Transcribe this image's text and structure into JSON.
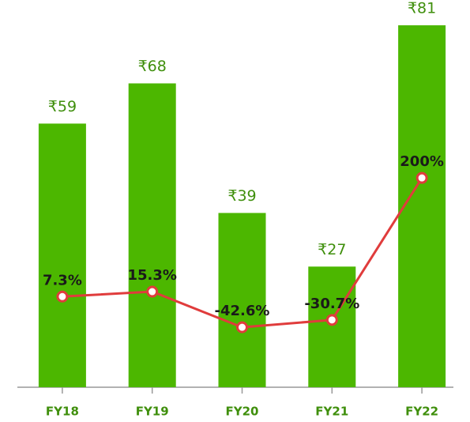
{
  "chart_data": {
    "type": "bar",
    "categories": [
      "FY18",
      "FY19",
      "FY20",
      "FY21",
      "FY22"
    ],
    "series": [
      {
        "type": "bar",
        "color": "#4cb700",
        "values": [
          59,
          68,
          39,
          27,
          81
        ],
        "value_labels": [
          "₹59",
          "₹68",
          "₹39",
          "₹27",
          "₹81"
        ]
      },
      {
        "type": "line",
        "axis": "y2",
        "color": "#e03c3c",
        "values": [
          7.3,
          15.3,
          -42.6,
          -30.7,
          200
        ],
        "value_labels": [
          "7.3%",
          "15.3%",
          "-42.6%",
          "-30.7%",
          "200%"
        ]
      }
    ],
    "ylim": [
      0,
      81
    ],
    "y2lim": [
      -140,
      448
    ]
  }
}
